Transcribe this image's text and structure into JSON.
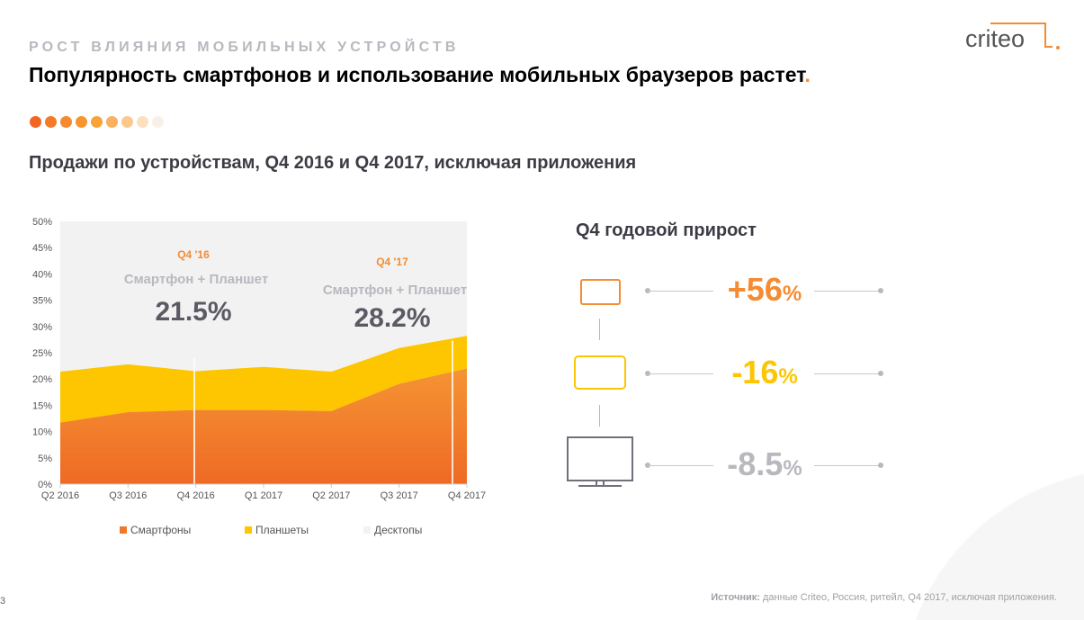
{
  "header": {
    "kicker": "РОСТ ВЛИЯНИЯ МОБИЛЬНЫХ УСТРОЙСТВ",
    "title": "Популярность смартфонов и использование мобильных браузеров растет",
    "title_dot": ".",
    "subtitle": "Продажи по устройствам, Q4 2016 и Q4 2017, исключая приложения",
    "logo_text": "criteo",
    "progress_dot_colors": [
      "#f26522",
      "#f47a2a",
      "#f58a30",
      "#f7952f",
      "#f8a23a",
      "#fab060",
      "#fcc890",
      "#fde0c0",
      "#f8f0e8"
    ]
  },
  "chart_data": {
    "type": "area",
    "stacked": true,
    "categories": [
      "Q2 2016",
      "Q3 2016",
      "Q4 2016",
      "Q1 2017",
      "Q2 2017",
      "Q3 2017",
      "Q4 2017"
    ],
    "series": [
      {
        "name": "Смартфоны",
        "color": "#f0782a",
        "values": [
          11.7,
          13.7,
          14.1,
          14.1,
          13.9,
          19.1,
          22.0
        ]
      },
      {
        "name": "Планшеты",
        "color": "#fdc600",
        "values": [
          9.7,
          9.1,
          7.4,
          8.2,
          7.5,
          6.8,
          6.2
        ]
      },
      {
        "name": "Десктопы",
        "color": "#f2f2f2"
      }
    ],
    "yticks": [
      "0%",
      "5%",
      "10%",
      "15%",
      "20%",
      "25%",
      "30%",
      "35%",
      "40%",
      "45%",
      "50%"
    ],
    "ylim": [
      0,
      50
    ],
    "grid": false,
    "legend": "bottom",
    "annotations": [
      {
        "period": "Q4 '16",
        "label": "Смартфон + Планшет",
        "value": "21.5%",
        "category": "Q4 2016"
      },
      {
        "period": "Q4 '17",
        "label": "Смартфон + Планшет",
        "value": "28.2%",
        "category": "Q4 2017"
      }
    ]
  },
  "growth": {
    "title": "Q4 годовой прирост",
    "items": [
      {
        "device": "smartphone-icon",
        "value": "+56",
        "unit": "%",
        "color": "#f58b32"
      },
      {
        "device": "tablet-icon",
        "value": "-16",
        "unit": "%",
        "color": "#fdc600"
      },
      {
        "device": "desktop-icon",
        "value": "-8.5",
        "unit": "%",
        "color": "#b8b8bf"
      }
    ]
  },
  "footer": {
    "source_label": "Источник:",
    "source_text": " данные Criteo,  Россия, ритейл, Q4 2017, исключая приложения.",
    "page": "3"
  }
}
